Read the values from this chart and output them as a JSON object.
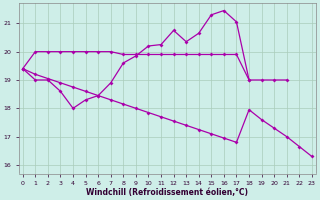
{
  "xlabel": "Windchill (Refroidissement éolien,°C)",
  "background_color": "#ceeee8",
  "grid_color": "#aaccbb",
  "line_color": "#aa00aa",
  "xlim_min": -0.3,
  "xlim_max": 23.3,
  "ylim_min": 15.7,
  "ylim_max": 21.7,
  "yticks": [
    16,
    17,
    18,
    19,
    20,
    21
  ],
  "xticks": [
    0,
    1,
    2,
    3,
    4,
    5,
    6,
    7,
    8,
    9,
    10,
    11,
    12,
    13,
    14,
    15,
    16,
    17,
    18,
    19,
    20,
    21,
    22,
    23
  ],
  "line1_x": [
    0,
    1,
    2,
    3,
    4,
    5,
    6,
    7,
    8,
    9,
    10,
    11,
    12,
    13,
    14,
    15,
    16,
    17,
    18,
    19,
    20,
    21
  ],
  "line1_y": [
    19.4,
    20.0,
    20.0,
    20.0,
    20.0,
    20.0,
    20.0,
    20.0,
    19.9,
    19.9,
    19.9,
    19.9,
    19.9,
    19.9,
    19.9,
    19.9,
    19.9,
    19.9,
    19.0,
    19.0,
    19.0,
    19.0
  ],
  "line2_x": [
    0,
    1,
    2,
    3,
    4,
    5,
    6,
    7,
    8,
    9,
    10,
    11,
    12,
    13,
    14,
    15,
    16,
    17,
    18
  ],
  "line2_y": [
    19.4,
    19.0,
    19.0,
    18.6,
    18.0,
    18.3,
    18.45,
    18.9,
    19.6,
    19.85,
    20.2,
    20.25,
    20.75,
    20.35,
    20.65,
    21.3,
    21.45,
    21.05,
    19.0
  ],
  "line3_x": [
    0,
    1,
    2,
    3,
    4,
    5,
    6,
    7,
    8,
    9,
    10,
    11,
    12,
    13,
    14,
    15,
    16,
    17,
    18,
    19,
    20,
    21,
    22,
    23
  ],
  "line3_y": [
    19.4,
    19.2,
    19.05,
    18.9,
    18.75,
    18.6,
    18.45,
    18.3,
    18.15,
    18.0,
    17.85,
    17.7,
    17.55,
    17.4,
    17.25,
    17.1,
    16.95,
    16.8,
    17.95,
    17.6,
    17.3,
    17.0,
    16.65,
    16.3
  ]
}
